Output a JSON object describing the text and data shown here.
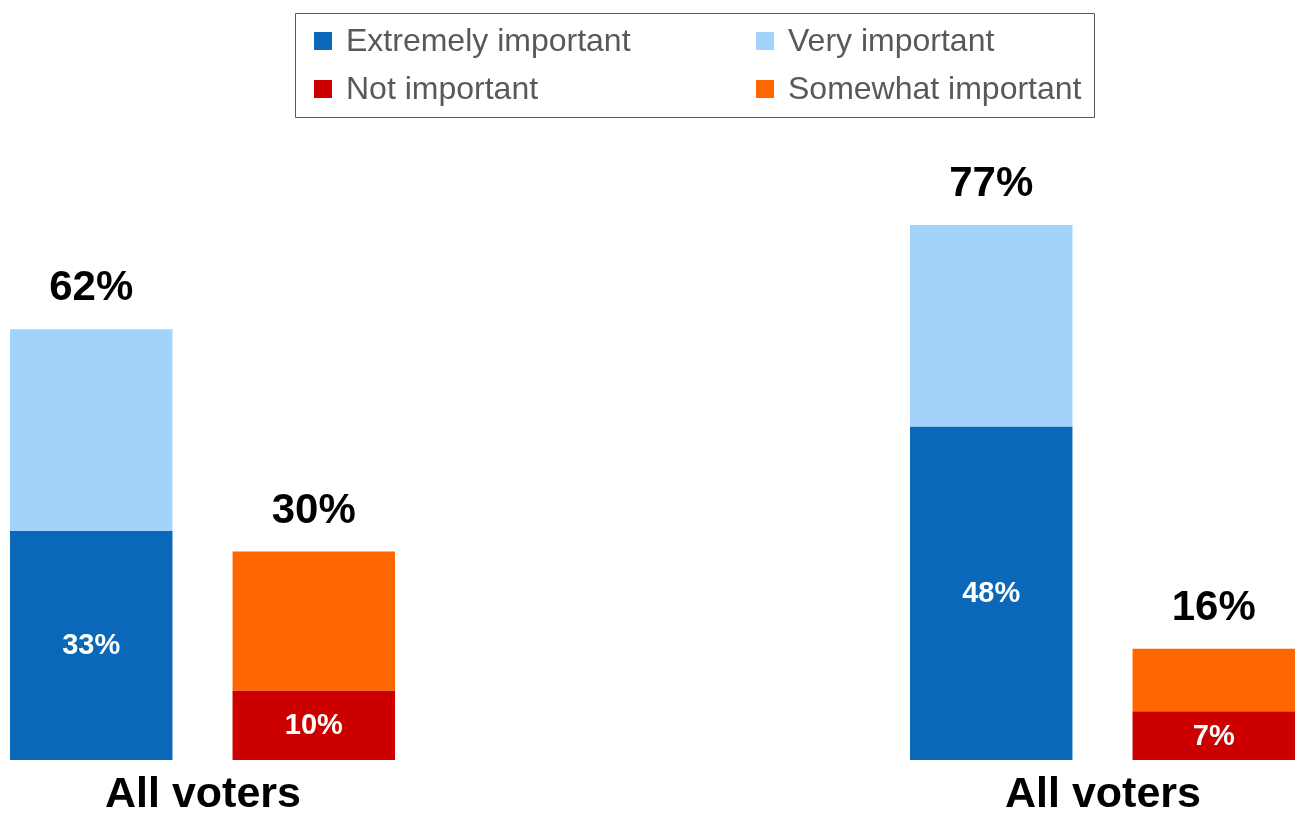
{
  "chart_data": [
    {
      "type": "bar",
      "stacked": true,
      "categories": [
        null,
        null
      ],
      "xlabel": "All voters",
      "legend": "top",
      "tick_labels": false,
      "series": [
        {
          "name": "Extremely important",
          "color": "#0b68b8",
          "values": [
            33,
            null
          ],
          "value_labels": [
            "33%",
            null
          ]
        },
        {
          "name": "Very important",
          "color": "#a3d3fb",
          "values": [
            29,
            null
          ]
        },
        {
          "name": "Not important",
          "color": "#cc0000",
          "values": [
            null,
            10
          ],
          "value_labels": [
            null,
            "10%"
          ]
        },
        {
          "name": "Somewhat important",
          "color": "#ff6600",
          "values": [
            null,
            20
          ]
        }
      ],
      "totals": [
        "62%",
        "30%"
      ]
    },
    {
      "type": "bar",
      "stacked": true,
      "categories": [
        null,
        null
      ],
      "xlabel": "All voters",
      "tick_labels": false,
      "series": [
        {
          "color": "#0b68b8",
          "values": [
            48,
            null
          ],
          "value_labels": [
            "48%",
            null
          ]
        },
        {
          "color": "#a3d3fb",
          "values": [
            29,
            null
          ]
        },
        {
          "color": "#cc0000",
          "values": [
            null,
            7
          ],
          "value_labels": [
            null,
            "7%"
          ]
        },
        {
          "color": "#ff6600",
          "values": [
            null,
            9
          ]
        }
      ],
      "totals": [
        "77%",
        "16%"
      ]
    }
  ]
}
